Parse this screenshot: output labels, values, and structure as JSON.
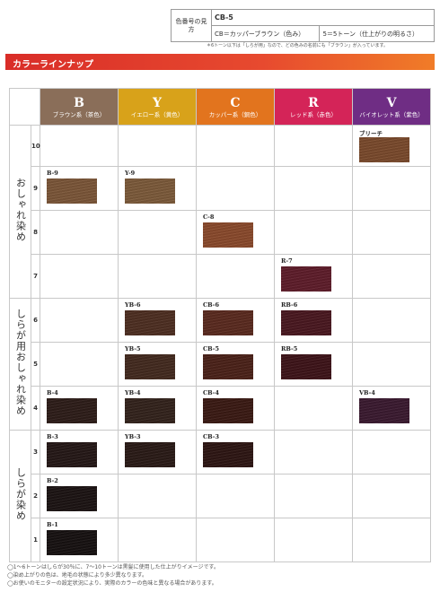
{
  "legend": {
    "label": "色番号の見方",
    "code": "CB-5",
    "cb_desc": "CB＝カッパーブラウン（色み）",
    "tone_desc": "5＝5トーン（仕上がりの明るさ）",
    "note": "＊6トーン以下は「しらが用」なので、どの色みの名前にも「ブラウン」が入っています。"
  },
  "banner": "カラーラインナップ",
  "columns": [
    {
      "letter": "B",
      "label": "ブラウン系（茶色）",
      "color": "#8a6e59"
    },
    {
      "letter": "Y",
      "label": "イエロー系（黄色）",
      "color": "#d8a21a"
    },
    {
      "letter": "C",
      "label": "カッパー系（銅色）",
      "color": "#e2741e"
    },
    {
      "letter": "R",
      "label": "レッド系（赤色）",
      "color": "#d42458"
    },
    {
      "letter": "V",
      "label": "バイオレット系（紫色）",
      "color": "#6f2d84"
    }
  ],
  "groups": [
    {
      "label": "おしゃれ染め"
    },
    {
      "label": "しらが用おしゃれ染め"
    },
    {
      "label": "しらが染め"
    }
  ],
  "levels": [
    "10",
    "9",
    "8",
    "7",
    "6",
    "5",
    "4",
    "3",
    "2",
    "1"
  ],
  "swatches": {
    "bleach": {
      "label": "ブリーチ",
      "color": "#7a4a2c"
    },
    "b9": {
      "label": "B-9",
      "color": "#7b5638"
    },
    "y9": {
      "label": "Y-9",
      "color": "#7c5a3a"
    },
    "c8": {
      "label": "C-8",
      "color": "#8a4a2c"
    },
    "r7": {
      "label": "R-7",
      "color": "#5e1d2a"
    },
    "yb6": {
      "label": "YB-6",
      "color": "#4e2f22"
    },
    "cb6": {
      "label": "CB-6",
      "color": "#5a2a1f"
    },
    "rb6": {
      "label": "RB-6",
      "color": "#4a1820"
    },
    "yb5": {
      "label": "YB-5",
      "color": "#432a1f"
    },
    "cb5": {
      "label": "CB-5",
      "color": "#4b2219"
    },
    "rb5": {
      "label": "RB-5",
      "color": "#3e1419"
    },
    "b4": {
      "label": "B-4",
      "color": "#2e1d19"
    },
    "yb4": {
      "label": "YB-4",
      "color": "#33231c"
    },
    "cb4": {
      "label": "CB-4",
      "color": "#3a1a14"
    },
    "vb4": {
      "label": "VB-4",
      "color": "#3a1a30"
    },
    "b3": {
      "label": "B-3",
      "color": "#251817"
    },
    "yb3": {
      "label": "YB-3",
      "color": "#2a1b17"
    },
    "cb3": {
      "label": "CB-3",
      "color": "#2e1613"
    },
    "b2": {
      "label": "B-2",
      "color": "#1c1413"
    },
    "b1": {
      "label": "B-1",
      "color": "#171111"
    }
  },
  "footnotes": [
    "◯1〜6トーンはしらが30％に、7〜10トーンは黒髪に使用した仕上がりイメージです。",
    "◯染め上がりの色は、地毛の状態により多少異なります。",
    "◯お使いのモニターの設定状況により、実際のカラーの色味と異なる場合があります。"
  ]
}
